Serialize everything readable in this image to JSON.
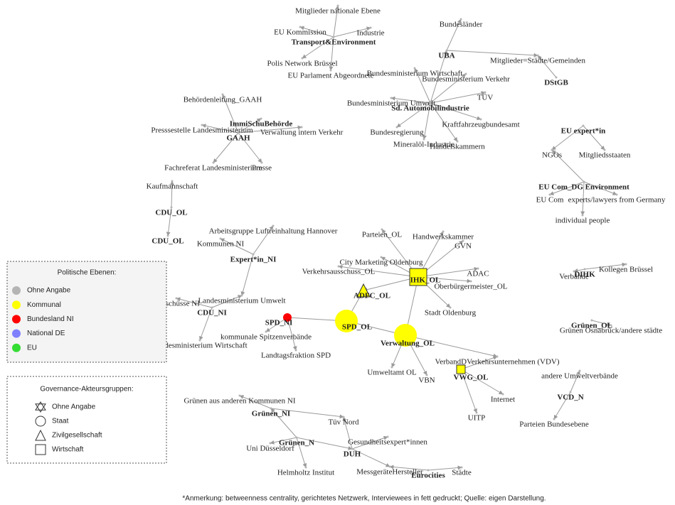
{
  "nodes": [
    {
      "label": "Mitglieder nationale Ebene"
    },
    {
      "label": "EU Kommission"
    },
    {
      "label": "Industrie"
    },
    {
      "label": "Transport&Environment",
      "bold": true
    },
    {
      "label": "Polis Network Brüssel"
    },
    {
      "label": "EU Parlament Abgeordnete"
    },
    {
      "label": "Bundesländer"
    },
    {
      "label": "UBA",
      "bold": true
    },
    {
      "label": "Mitglieder=Städte/Gemeinden"
    },
    {
      "label": "Bundesministerium Wirtschaft"
    },
    {
      "label": "Bundesministerium Verkehr"
    },
    {
      "label": "DStGB",
      "bold": true
    },
    {
      "label": "TÜV"
    },
    {
      "label": "Bundesministerium Umwelt"
    },
    {
      "label": "Sd. Automobilindustrie",
      "bold": true
    },
    {
      "label": "Kraftfahrzeugbundesamt"
    },
    {
      "label": "Bundesregierung"
    },
    {
      "label": "Mineralöl-Industrie"
    },
    {
      "label": "Handelskammern"
    },
    {
      "label": "Behördenleitung_GAAH"
    },
    {
      "label": "ImmiSchuBehörde",
      "bold": true
    },
    {
      "label": "Presssestelle Landesministerium"
    },
    {
      "label": "Verwaltung intern Verkehr"
    },
    {
      "label": "GAAH",
      "bold": true
    },
    {
      "label": "Fachreferat Landesministerium"
    },
    {
      "label": "Presse"
    },
    {
      "label": "EU expert*in",
      "bold": true
    },
    {
      "label": "NGOs"
    },
    {
      "label": "Mitgliedsstaaten"
    },
    {
      "label": "EU Com_DG Environment",
      "bold": true
    },
    {
      "label": "EU Com"
    },
    {
      "label": "experts/lawyers from Germany"
    },
    {
      "label": "individual people"
    },
    {
      "label": "Kaufmannschaft"
    },
    {
      "label": "CDU_OL",
      "bold": true
    },
    {
      "label": "CDU_OL",
      "bold": true
    },
    {
      "label": "Arbeitsgruppe Luftreinhaltung Hannover"
    },
    {
      "label": "Kommunen NI"
    },
    {
      "label": "Expert*in_NI",
      "bold": true
    },
    {
      "label": "Parteien_OL"
    },
    {
      "label": "Handwerkskammer"
    },
    {
      "label": "GVN"
    },
    {
      "label": "City Marketing Oldenburg"
    },
    {
      "label": "Verkehrsausschuss_OL"
    },
    {
      "label": "ADAC"
    },
    {
      "label": "IHK_OL",
      "bold": true,
      "color": "#ffff00",
      "shape": "square"
    },
    {
      "label": "ADFC_OL",
      "bold": true,
      "color": "#ffff00",
      "shape": "triangle"
    },
    {
      "label": "Oberbürgermeister_OL"
    },
    {
      "label": "Landesministerium Umwelt"
    },
    {
      "label": "Ausschüsse NI"
    },
    {
      "label": "CDU_NI",
      "bold": true
    },
    {
      "label": "Stadt Oldenburg"
    },
    {
      "label": "SPD_NI",
      "bold": true,
      "color": "#ff0000",
      "shape": "circle"
    },
    {
      "label": "SPD_OL",
      "bold": true,
      "color": "#ffff00",
      "shape": "circle"
    },
    {
      "label": "kommunale Spitzenverbände"
    },
    {
      "label": "Landesministerium Wirtschaft"
    },
    {
      "label": "Verwaltung_OL",
      "bold": true,
      "color": "#ffff00",
      "shape": "circle"
    },
    {
      "label": "Landtagsfraktion SPD"
    },
    {
      "label": "DIHK",
      "bold": true
    },
    {
      "label": "Kollegen Brüssel"
    },
    {
      "label": "Verbände"
    },
    {
      "label": "Grünen_OL",
      "bold": true
    },
    {
      "label": "Grünen Osnabrück/andere städte"
    },
    {
      "label": "VerbandDVerkehrsunternehmen (VDV)"
    },
    {
      "label": "VWG_OL",
      "bold": true,
      "color": "#ffff00",
      "shape": "square"
    },
    {
      "label": "andere Umweltverbände"
    },
    {
      "label": "Umweltamt OL"
    },
    {
      "label": "VBN"
    },
    {
      "label": "Internet"
    },
    {
      "label": "VCD_N",
      "bold": true
    },
    {
      "label": "UITP"
    },
    {
      "label": "Parteien Bundesebene"
    },
    {
      "label": "Grünen aus anderen Kommunen NI"
    },
    {
      "label": "Grünen_NI",
      "bold": true
    },
    {
      "label": "Tüv Nord"
    },
    {
      "label": "Grünen_N",
      "bold": true
    },
    {
      "label": "Gesundheitsexpert*innen"
    },
    {
      "label": "Uni Düsseldorf"
    },
    {
      "label": "DUH",
      "bold": true
    },
    {
      "label": "Helmholtz Institut"
    },
    {
      "label": "MessgeräteHersteller"
    },
    {
      "label": "Eurocities",
      "bold": true
    },
    {
      "label": "Städte"
    }
  ],
  "legend_levels": {
    "title": "Politische Ebenen:",
    "items": [
      {
        "label": "Ohne Angabe",
        "color": "#b4b4b4"
      },
      {
        "label": "Kommunal",
        "color": "#ffff00"
      },
      {
        "label": "Bundesland NI",
        "color": "#ff0000"
      },
      {
        "label": "National DE",
        "color": "#8080ff"
      },
      {
        "label": "EU",
        "color": "#33dd33"
      }
    ]
  },
  "legend_groups": {
    "title": "Governance-Akteursgruppen:",
    "items": [
      {
        "label": "Ohne Angabe",
        "shape": "hexagram"
      },
      {
        "label": "Staat",
        "shape": "circle"
      },
      {
        "label": "Zivilgesellschaft",
        "shape": "triangle"
      },
      {
        "label": "Wirtschaft",
        "shape": "square"
      }
    ]
  },
  "footnote": "*Anmerkung: betweenness centrality, gerichtetes Netzwerk, Interviewees in fett gedruckt; Quelle: eigen Darstellung."
}
